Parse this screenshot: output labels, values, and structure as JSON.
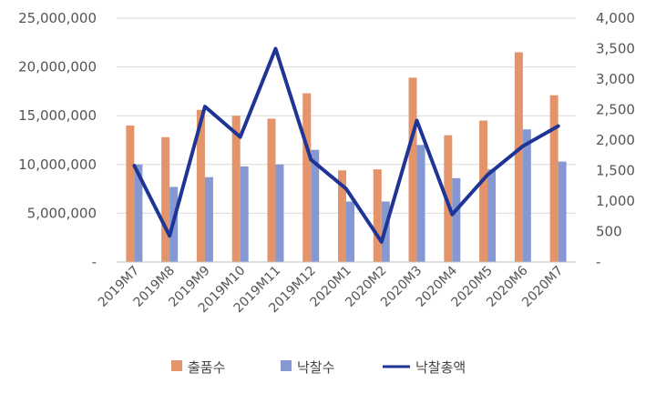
{
  "chart_data": {
    "type": "bar",
    "categories": [
      "2019M7",
      "2019M8",
      "2019M9",
      "2019M10",
      "2019M11",
      "2019M12",
      "2020M1",
      "2020M2",
      "2020M3",
      "2020M4",
      "2020M5",
      "2020M6",
      "2020M7"
    ],
    "series": [
      {
        "name": "출품수",
        "kind": "bar",
        "axis": "left",
        "color": "#E4946A",
        "values": [
          14000000,
          12800000,
          15600000,
          15000000,
          14700000,
          17300000,
          9400000,
          9500000,
          18900000,
          13000000,
          14500000,
          21500000,
          17100000
        ]
      },
      {
        "name": "낙찰수",
        "kind": "bar",
        "axis": "left",
        "color": "#8598D2",
        "values": [
          10000000,
          7700000,
          8700000,
          9800000,
          10000000,
          11500000,
          6200000,
          6200000,
          12000000,
          8600000,
          9500000,
          13600000,
          10300000
        ]
      },
      {
        "name": "낙찰총액",
        "kind": "line",
        "axis": "right",
        "color": "#1F3595",
        "values": [
          1580,
          430,
          2550,
          2050,
          3500,
          1680,
          1200,
          330,
          2320,
          780,
          1430,
          1900,
          2230
        ]
      }
    ],
    "y_left": {
      "min": 0,
      "max": 25000000,
      "ticks": [
        "-",
        "5,000,000",
        "10,000,000",
        "15,000,000",
        "20,000,000",
        "25,000,000"
      ]
    },
    "y_right": {
      "min": 0,
      "max": 4000,
      "ticks": [
        "-",
        "500",
        "1,000",
        "1,500",
        "2,000",
        "2,500",
        "3,000",
        "3,500",
        "4,000"
      ]
    },
    "grid": true,
    "legend": "bottom"
  }
}
